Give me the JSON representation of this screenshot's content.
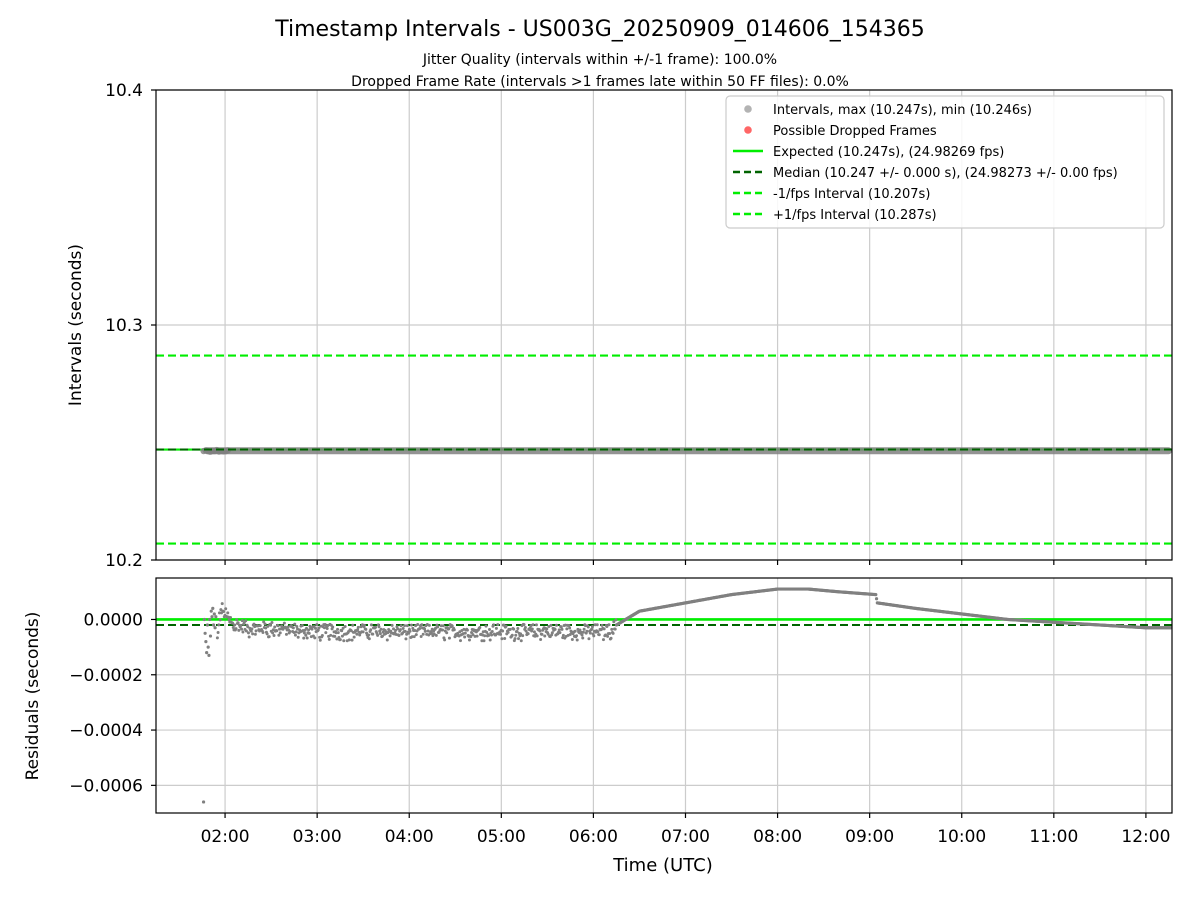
{
  "title": "Timestamp Intervals - US003G_20250909_014606_154365",
  "subtitle_1": "Jitter Quality (intervals within +/-1 frame): 100.0%",
  "subtitle_2": "Dropped Frame Rate (intervals >1 frames late within 50 FF files): 0.0%",
  "colors": {
    "points": "#808080",
    "points_light": "#b3b3b3",
    "dropped": "#ff6666",
    "expected": "#00ee00",
    "median": "#006400",
    "fps_interval": "#00ee00",
    "grid": "#cccccc",
    "axes": "#000000"
  },
  "chart_data": [
    {
      "type": "scatter",
      "panel": "top",
      "xlabel": "",
      "ylabel": "Intervals (seconds)",
      "xlim": [
        "01:15",
        "12:17"
      ],
      "ylim": [
        10.2,
        10.4
      ],
      "yticks": [
        "10.2",
        "10.3",
        "10.4"
      ],
      "ytick_values": [
        10.2,
        10.3,
        10.4
      ],
      "grid": true,
      "legend_position": "top-right",
      "legend": [
        {
          "label": "Intervals, max (10.247s), min (10.246s)",
          "kind": "marker",
          "color": "#b3b3b3"
        },
        {
          "label": "Possible Dropped Frames",
          "kind": "marker",
          "color": "#ff6666"
        },
        {
          "label": "Expected (10.247s), (24.98269 fps)",
          "kind": "solid",
          "color": "#00ee00"
        },
        {
          "label": "Median (10.247 +/- 0.000 s), (24.98273 +/- 0.00 fps)",
          "kind": "dashed",
          "color": "#006400"
        },
        {
          "label": "-1/fps Interval (10.207s)",
          "kind": "dashed",
          "color": "#00ee00"
        },
        {
          "label": "+1/fps Interval (10.287s)",
          "kind": "dashed",
          "color": "#00ee00"
        }
      ],
      "lines": {
        "expected": 10.247,
        "median": 10.247,
        "minus_fps": 10.207,
        "plus_fps": 10.287
      },
      "series": [
        {
          "name": "Intervals",
          "x_start": "01:46",
          "x_end": "12:17",
          "y_min": 10.246,
          "y_max": 10.247
        }
      ]
    },
    {
      "type": "scatter",
      "panel": "bottom",
      "xlabel": "Time (UTC)",
      "ylabel": "Residuals (seconds)",
      "xlim": [
        "01:15",
        "12:17"
      ],
      "ylim": [
        -0.0007,
        0.00015
      ],
      "xticks": [
        "02:00",
        "03:00",
        "04:00",
        "05:00",
        "06:00",
        "07:00",
        "08:00",
        "09:00",
        "10:00",
        "11:00",
        "12:00"
      ],
      "yticks": [
        "0.0000",
        "−0.0002",
        "−0.0004",
        "−0.0006"
      ],
      "ytick_values": [
        0,
        -0.0002,
        -0.0004,
        -0.0006
      ],
      "grid": true,
      "expected": 0.0,
      "median": -2e-05,
      "series": [
        {
          "name": "Residuals",
          "x": [
            "01:46",
            "01:48",
            "01:50",
            "01:52",
            "01:54",
            "01:56",
            "01:58",
            "02:00",
            "02:05",
            "02:15",
            "02:30",
            "03:00",
            "03:30",
            "04:00",
            "04:30",
            "05:00",
            "05:30",
            "06:00",
            "06:10",
            "06:15",
            "06:30",
            "07:00",
            "07:30",
            "08:00",
            "08:20",
            "08:40",
            "09:04",
            "09:05",
            "09:30",
            "10:00",
            "10:30",
            "11:00",
            "11:30",
            "12:00",
            "12:17"
          ],
          "y": [
            -0.00066,
            0.0,
            -5e-05,
            -0.0001,
            -0.00013,
            0.0,
            4e-05,
            2e-05,
            -1e-05,
            -3e-05,
            -3e-05,
            -4e-05,
            -4e-05,
            -4e-05,
            -4e-05,
            -4e-05,
            -4e-05,
            -4e-05,
            -4e-05,
            -2e-05,
            3e-05,
            6e-05,
            9e-05,
            0.00011,
            0.00011,
            0.0001,
            9e-05,
            6e-05,
            4e-05,
            2e-05,
            0.0,
            -1e-05,
            -2e-05,
            -3e-05,
            -3e-05
          ]
        }
      ]
    }
  ]
}
